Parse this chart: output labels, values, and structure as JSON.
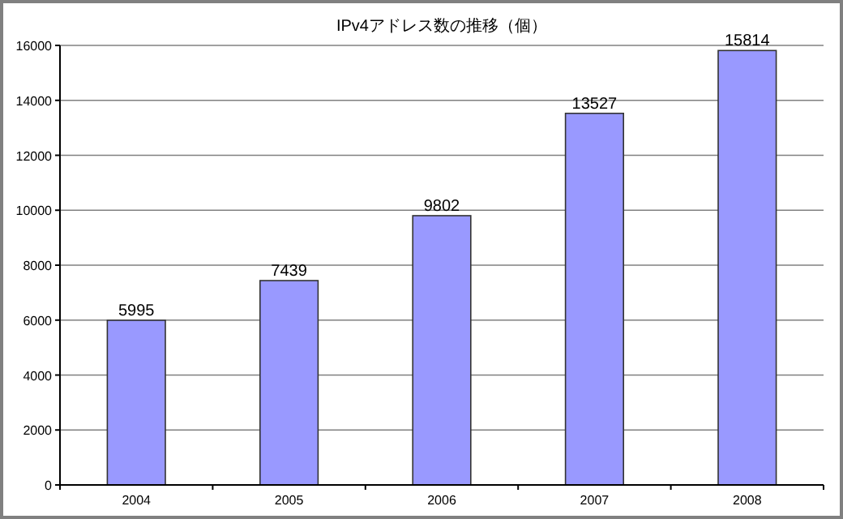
{
  "chart_data": {
    "type": "bar",
    "title": "IPv4アドレス数の推移（個）",
    "categories": [
      "2004",
      "2005",
      "2006",
      "2007",
      "2008"
    ],
    "values": [
      5995,
      7439,
      9802,
      13527,
      15814
    ],
    "color": "#9999ff",
    "ylim": [
      0,
      16000
    ],
    "yticks": [
      0,
      2000,
      4000,
      6000,
      8000,
      10000,
      12000,
      14000,
      16000
    ],
    "grid": "y",
    "data_labels": true
  }
}
